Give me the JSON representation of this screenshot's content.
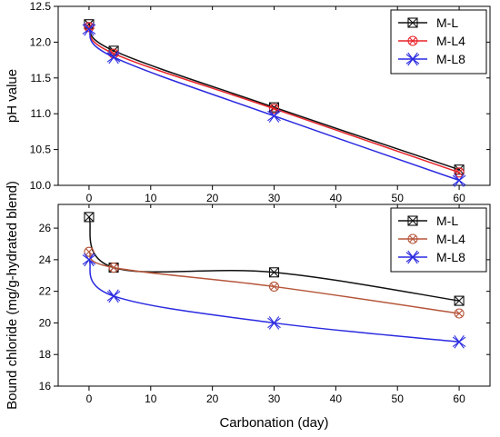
{
  "chart_data": [
    {
      "type": "line",
      "ylabel": "pH value",
      "xlabel": "",
      "xlim": [
        -5,
        65
      ],
      "ylim": [
        10.0,
        12.5
      ],
      "x_ticks": [
        0,
        10,
        20,
        30,
        40,
        50,
        60
      ],
      "y_ticks": [
        10.0,
        10.5,
        11.0,
        11.5,
        12.0,
        12.5
      ],
      "y_tick_labels": [
        "10.0",
        "10.5",
        "11.0",
        "11.5",
        "12.0",
        "12.5"
      ],
      "x": [
        0,
        4,
        30,
        60
      ],
      "legend_position": "top-right",
      "series": [
        {
          "name": "M-L",
          "values": [
            12.25,
            11.88,
            11.09,
            10.22
          ],
          "color": "#111111",
          "marker": "boxed-x"
        },
        {
          "name": "M-L4",
          "values": [
            12.21,
            11.84,
            11.07,
            10.18
          ],
          "color": "#e8242a",
          "marker": "circled-x"
        },
        {
          "name": "M-L8",
          "values": [
            12.18,
            11.79,
            10.97,
            10.07
          ],
          "color": "#2a2ae0",
          "marker": "star-x"
        }
      ]
    },
    {
      "type": "line",
      "ylabel": "Bound chloride (mg/g-hydrated blend)",
      "xlabel": "Carbonation (day)",
      "xlim": [
        -5,
        65
      ],
      "ylim": [
        16,
        27.5
      ],
      "x_ticks": [
        0,
        10,
        20,
        30,
        40,
        50,
        60
      ],
      "y_ticks": [
        16,
        18,
        20,
        22,
        24,
        26
      ],
      "x": [
        0,
        4,
        30,
        60
      ],
      "legend_position": "top-right",
      "series": [
        {
          "name": "M-L",
          "values": [
            26.7,
            23.5,
            23.2,
            21.4
          ],
          "color": "#111111",
          "marker": "boxed-x"
        },
        {
          "name": "M-L4",
          "values": [
            24.5,
            23.5,
            22.3,
            20.6
          ],
          "color": "#b5553a",
          "marker": "circled-x"
        },
        {
          "name": "M-L8",
          "values": [
            24.0,
            21.7,
            20.0,
            18.8
          ],
          "color": "#2a2ae0",
          "marker": "star-x"
        }
      ]
    }
  ]
}
